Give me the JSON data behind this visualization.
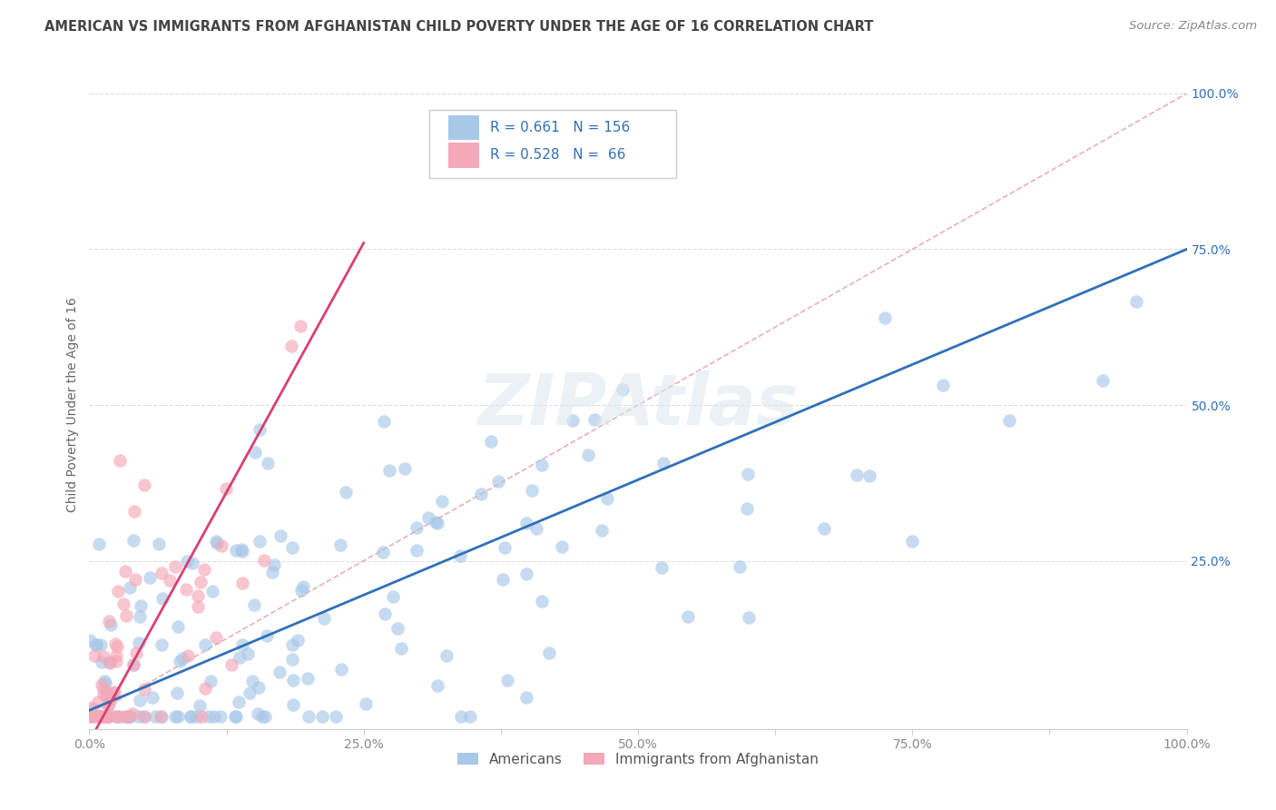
{
  "title": "AMERICAN VS IMMIGRANTS FROM AFGHANISTAN CHILD POVERTY UNDER THE AGE OF 16 CORRELATION CHART",
  "source": "Source: ZipAtlas.com",
  "ylabel": "Child Poverty Under the Age of 16",
  "xlim": [
    0,
    1
  ],
  "ylim": [
    -0.02,
    1.02
  ],
  "xtick_labels": [
    "0.0%",
    "",
    "25.0%",
    "",
    "50.0%",
    "",
    "75.0%",
    "",
    "100.0%"
  ],
  "xtick_vals": [
    0,
    0.125,
    0.25,
    0.375,
    0.5,
    0.625,
    0.75,
    0.875,
    1.0
  ],
  "ytick_labels_right": [
    "100.0%",
    "75.0%",
    "50.0%",
    "25.0%"
  ],
  "ytick_vals_right": [
    1.0,
    0.75,
    0.5,
    0.25
  ],
  "hgrid_vals": [
    0.25,
    0.5,
    0.75,
    1.0
  ],
  "blue_R": 0.661,
  "blue_N": 156,
  "pink_R": 0.528,
  "pink_N": 66,
  "blue_color": "#A8C8E8",
  "pink_color": "#F4A8B8",
  "blue_line_color": "#3070B8",
  "pink_line_color": "#D84070",
  "diag_color": "#E8B0B8",
  "legend_label_americans": "Americans",
  "legend_label_immigrants": "Immigrants from Afghanistan",
  "watermark": "ZIPAtlas",
  "background_color": "#FFFFFF",
  "grid_color": "#DDDDDD",
  "title_color": "#444444",
  "axis_label_color": "#666666",
  "right_tick_color": "#3070B8"
}
